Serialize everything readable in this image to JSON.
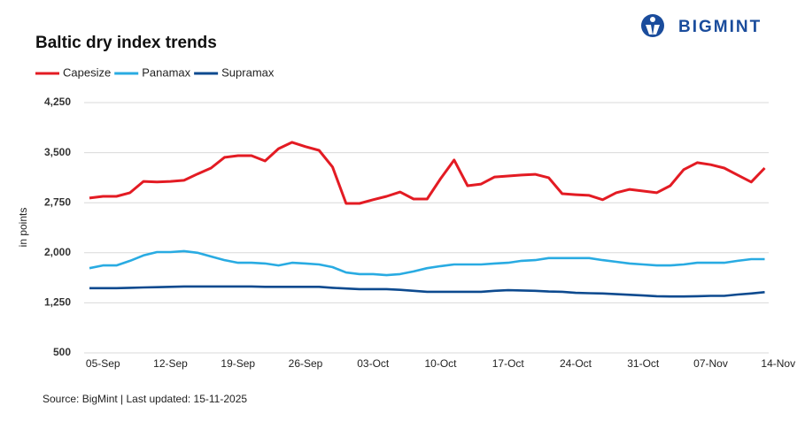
{
  "logo": "BIGMINT",
  "chart_data": {
    "type": "line",
    "title": "Baltic dry index trends",
    "y_label": "in points",
    "source": "Source: BigMint | Last updated: 15-11-2025",
    "categories": [
      null,
      "05-Sep",
      null,
      null,
      null,
      null,
      "12-Sep",
      null,
      null,
      null,
      null,
      "19-Sep",
      null,
      null,
      null,
      null,
      "26-Sep",
      null,
      null,
      null,
      null,
      "03-Oct",
      null,
      null,
      null,
      null,
      "10-Oct",
      null,
      null,
      null,
      null,
      "17-Oct",
      null,
      null,
      null,
      null,
      "24-Oct",
      null,
      null,
      null,
      null,
      "31-Oct",
      null,
      null,
      null,
      null,
      "07-Nov",
      null,
      null,
      null,
      null,
      "14-Nov"
    ],
    "series": [
      {
        "name": "Capesize",
        "color": "#e31b23",
        "values": [
          2820,
          2845,
          2845,
          2900,
          3070,
          3060,
          3070,
          3085,
          3180,
          3270,
          3430,
          3455,
          3455,
          3375,
          3560,
          3655,
          3590,
          3535,
          3285,
          2740,
          2740,
          2795,
          2845,
          2910,
          2805,
          2805,
          3110,
          3390,
          3005,
          3030,
          3135,
          3150,
          3165,
          3175,
          3125,
          2885,
          2870,
          2860,
          2795,
          2900,
          2950,
          2925,
          2900,
          3005,
          3245,
          3350,
          3320,
          3270,
          3165,
          3060,
          3270,
          null
        ]
      },
      {
        "name": "Panamax",
        "color": "#29abe2",
        "values": [
          1770,
          1810,
          1810,
          1880,
          1960,
          2010,
          2010,
          2025,
          2000,
          1945,
          1890,
          1850,
          1850,
          1840,
          1810,
          1850,
          1840,
          1825,
          1785,
          1705,
          1680,
          1680,
          1665,
          1680,
          1720,
          1770,
          1800,
          1825,
          1825,
          1825,
          1840,
          1850,
          1880,
          1890,
          1920,
          1920,
          1920,
          1920,
          1890,
          1865,
          1840,
          1825,
          1810,
          1810,
          1825,
          1850,
          1850,
          1850,
          1880,
          1905,
          1905,
          null
        ]
      },
      {
        "name": "Supramax",
        "color": "#0d4a8f",
        "values": [
          1470,
          1470,
          1470,
          1475,
          1480,
          1485,
          1490,
          1495,
          1495,
          1495,
          1495,
          1495,
          1495,
          1490,
          1490,
          1490,
          1490,
          1490,
          1475,
          1465,
          1455,
          1455,
          1455,
          1445,
          1430,
          1415,
          1415,
          1415,
          1415,
          1415,
          1430,
          1440,
          1435,
          1430,
          1420,
          1415,
          1400,
          1395,
          1390,
          1380,
          1370,
          1360,
          1350,
          1345,
          1345,
          1350,
          1355,
          1355,
          1375,
          1390,
          1410,
          null
        ]
      }
    ],
    "ylim": [
      500,
      4250
    ],
    "yticks": [
      500,
      {
        "value": 1250,
        "label": "1,250"
      },
      {
        "value": 2000,
        "label": "2,000"
      },
      {
        "value": 2750,
        "label": "2,750"
      },
      {
        "value": 3500,
        "label": "3,500"
      },
      {
        "value": 4250,
        "label": "4,250"
      }
    ],
    "grid": true,
    "legend": "top-left"
  }
}
